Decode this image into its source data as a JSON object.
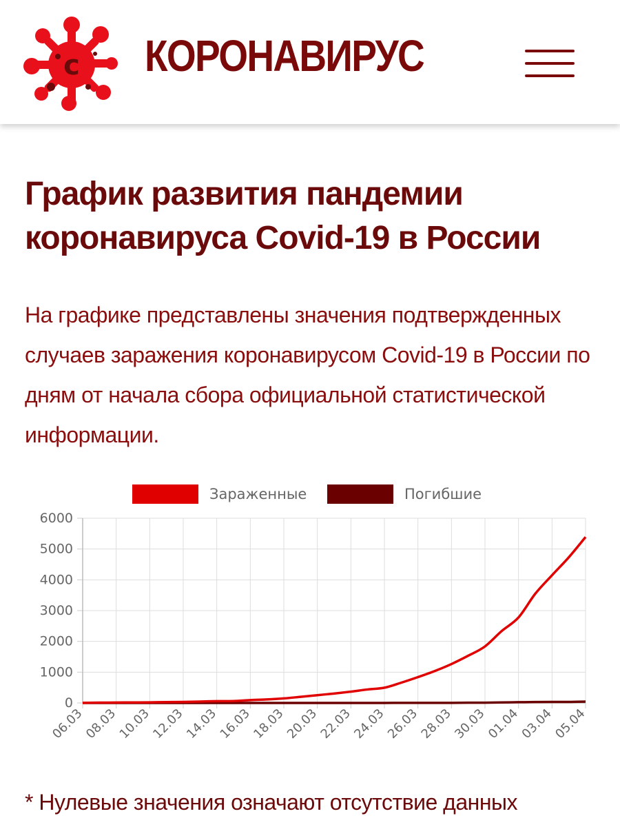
{
  "header": {
    "logo_icon": "virus-icon",
    "logo_letter": "c",
    "brand": "КОРОНАВИРУС",
    "menu_icon": "hamburger-menu-icon"
  },
  "article": {
    "title": "График развития пандемии коронавируса Covid-19 в России",
    "intro": "На графике представлены значения подтвержденных случаев заражения коронавирусом Covid-19 в России по дням от начала сбора официальной статистической информации.",
    "footnote": "* Нулевые значения означают отсутствие данных"
  },
  "colors": {
    "brand": "#7a0a0a",
    "infected": "#e00000",
    "deaths": "#6b0000"
  },
  "chart_data": {
    "type": "line",
    "title": "",
    "xlabel": "",
    "ylabel": "",
    "ylim": [
      0,
      6000
    ],
    "yticks": [
      0,
      1000,
      2000,
      3000,
      4000,
      5000,
      6000
    ],
    "grid": true,
    "legend_position": "top",
    "x": [
      "06.03",
      "07.03",
      "08.03",
      "09.03",
      "10.03",
      "11.03",
      "12.03",
      "13.03",
      "14.03",
      "15.03",
      "16.03",
      "17.03",
      "18.03",
      "19.03",
      "20.03",
      "21.03",
      "22.03",
      "23.03",
      "24.03",
      "25.03",
      "26.03",
      "27.03",
      "28.03",
      "29.03",
      "30.03",
      "31.03",
      "01.04",
      "02.04",
      "03.04",
      "04.04",
      "05.04"
    ],
    "xtick_labels": [
      "06.03",
      "08.03",
      "10.03",
      "12.03",
      "14.03",
      "16.03",
      "18.03",
      "20.03",
      "22.03",
      "24.03",
      "26.03",
      "28.03",
      "30.03",
      "01.04",
      "03.04",
      "05.04"
    ],
    "series": [
      {
        "name": "Зараженные",
        "color": "#e00000",
        "values": [
          4,
          10,
          14,
          17,
          20,
          28,
          34,
          45,
          59,
          63,
          93,
          114,
          147,
          199,
          253,
          306,
          367,
          438,
          495,
          658,
          840,
          1036,
          1264,
          1534,
          1836,
          2337,
          2777,
          3548,
          4149,
          4731,
          5389
        ]
      },
      {
        "name": "Погибшие",
        "color": "#6b0000",
        "values": [
          0,
          0,
          0,
          0,
          0,
          0,
          0,
          0,
          0,
          0,
          0,
          0,
          0,
          1,
          1,
          1,
          1,
          1,
          1,
          3,
          3,
          4,
          4,
          8,
          9,
          17,
          24,
          30,
          34,
          34,
          45
        ]
      }
    ]
  }
}
